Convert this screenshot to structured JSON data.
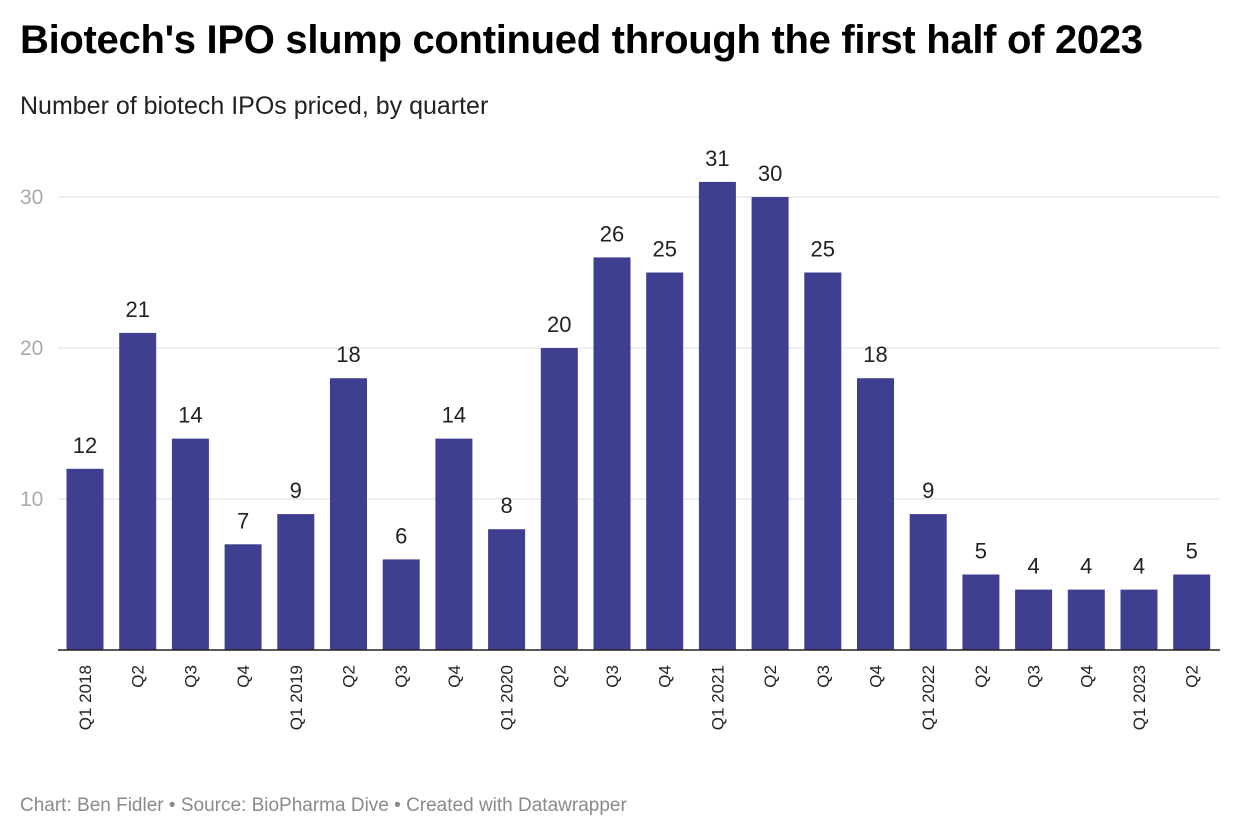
{
  "title": "Biotech's IPO slump continued through the first half of 2023",
  "subtitle": "Number of biotech IPOs priced, by quarter",
  "footer": "Chart: Ben Fidler • Source: BioPharma Dive • Created with Datawrapper",
  "chart_data": {
    "type": "bar",
    "title": "Biotech's IPO slump continued through the first half of 2023",
    "subtitle": "Number of biotech IPOs priced, by quarter",
    "xlabel": "",
    "ylabel": "",
    "categories": [
      "Q1 2018",
      "Q2",
      "Q3",
      "Q4",
      "Q1 2019",
      "Q2",
      "Q3",
      "Q4",
      "Q1 2020",
      "Q2",
      "Q3",
      "Q4",
      "Q1 2021",
      "Q2",
      "Q3",
      "Q4",
      "Q1 2022",
      "Q2",
      "Q3",
      "Q4",
      "Q1 2023",
      "Q2"
    ],
    "values": [
      12,
      21,
      14,
      7,
      9,
      18,
      6,
      14,
      8,
      20,
      26,
      25,
      31,
      30,
      25,
      18,
      9,
      5,
      4,
      4,
      4,
      5
    ],
    "yticks": [
      10,
      20,
      30
    ],
    "ylim": [
      0,
      33
    ],
    "grid": true,
    "bar_color": "#3f3f91",
    "data_labels": true
  }
}
